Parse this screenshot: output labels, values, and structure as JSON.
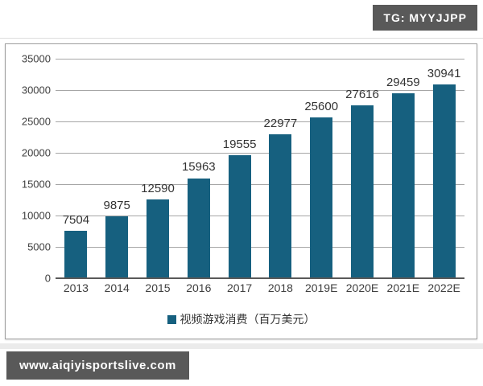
{
  "header": {
    "badge": "TG: MYYJJPP"
  },
  "footer": {
    "watermark": "www.aiqiyisportslive.com"
  },
  "colors": {
    "bar": "#16607f",
    "badge_bg": "#595959",
    "gridline": "#a6a6a6",
    "axis_line": "#595959",
    "text": "#404040"
  },
  "chart_data": {
    "type": "bar",
    "title": "",
    "categories": [
      "2013",
      "2014",
      "2015",
      "2016",
      "2017",
      "2018",
      "2019E",
      "2020E",
      "2021E",
      "2022E"
    ],
    "values": [
      7504,
      9875,
      12590,
      15963,
      19555,
      22977,
      25600,
      27616,
      29459,
      30941
    ],
    "data_labels": [
      "7504",
      "9875",
      "12590",
      "15963",
      "19555",
      "22977",
      "25600",
      "27616",
      "29459",
      "30941"
    ],
    "legend": "视频游戏消费（百万美元）",
    "legend_position": "bottom",
    "xlabel": "",
    "ylabel": "",
    "ylim": [
      0,
      35000
    ],
    "ytick_step": 5000,
    "ytick_labels": [
      "0",
      "5000",
      "10000",
      "15000",
      "20000",
      "25000",
      "30000",
      "35000"
    ],
    "grid": true,
    "bar_color": "#16607f"
  }
}
